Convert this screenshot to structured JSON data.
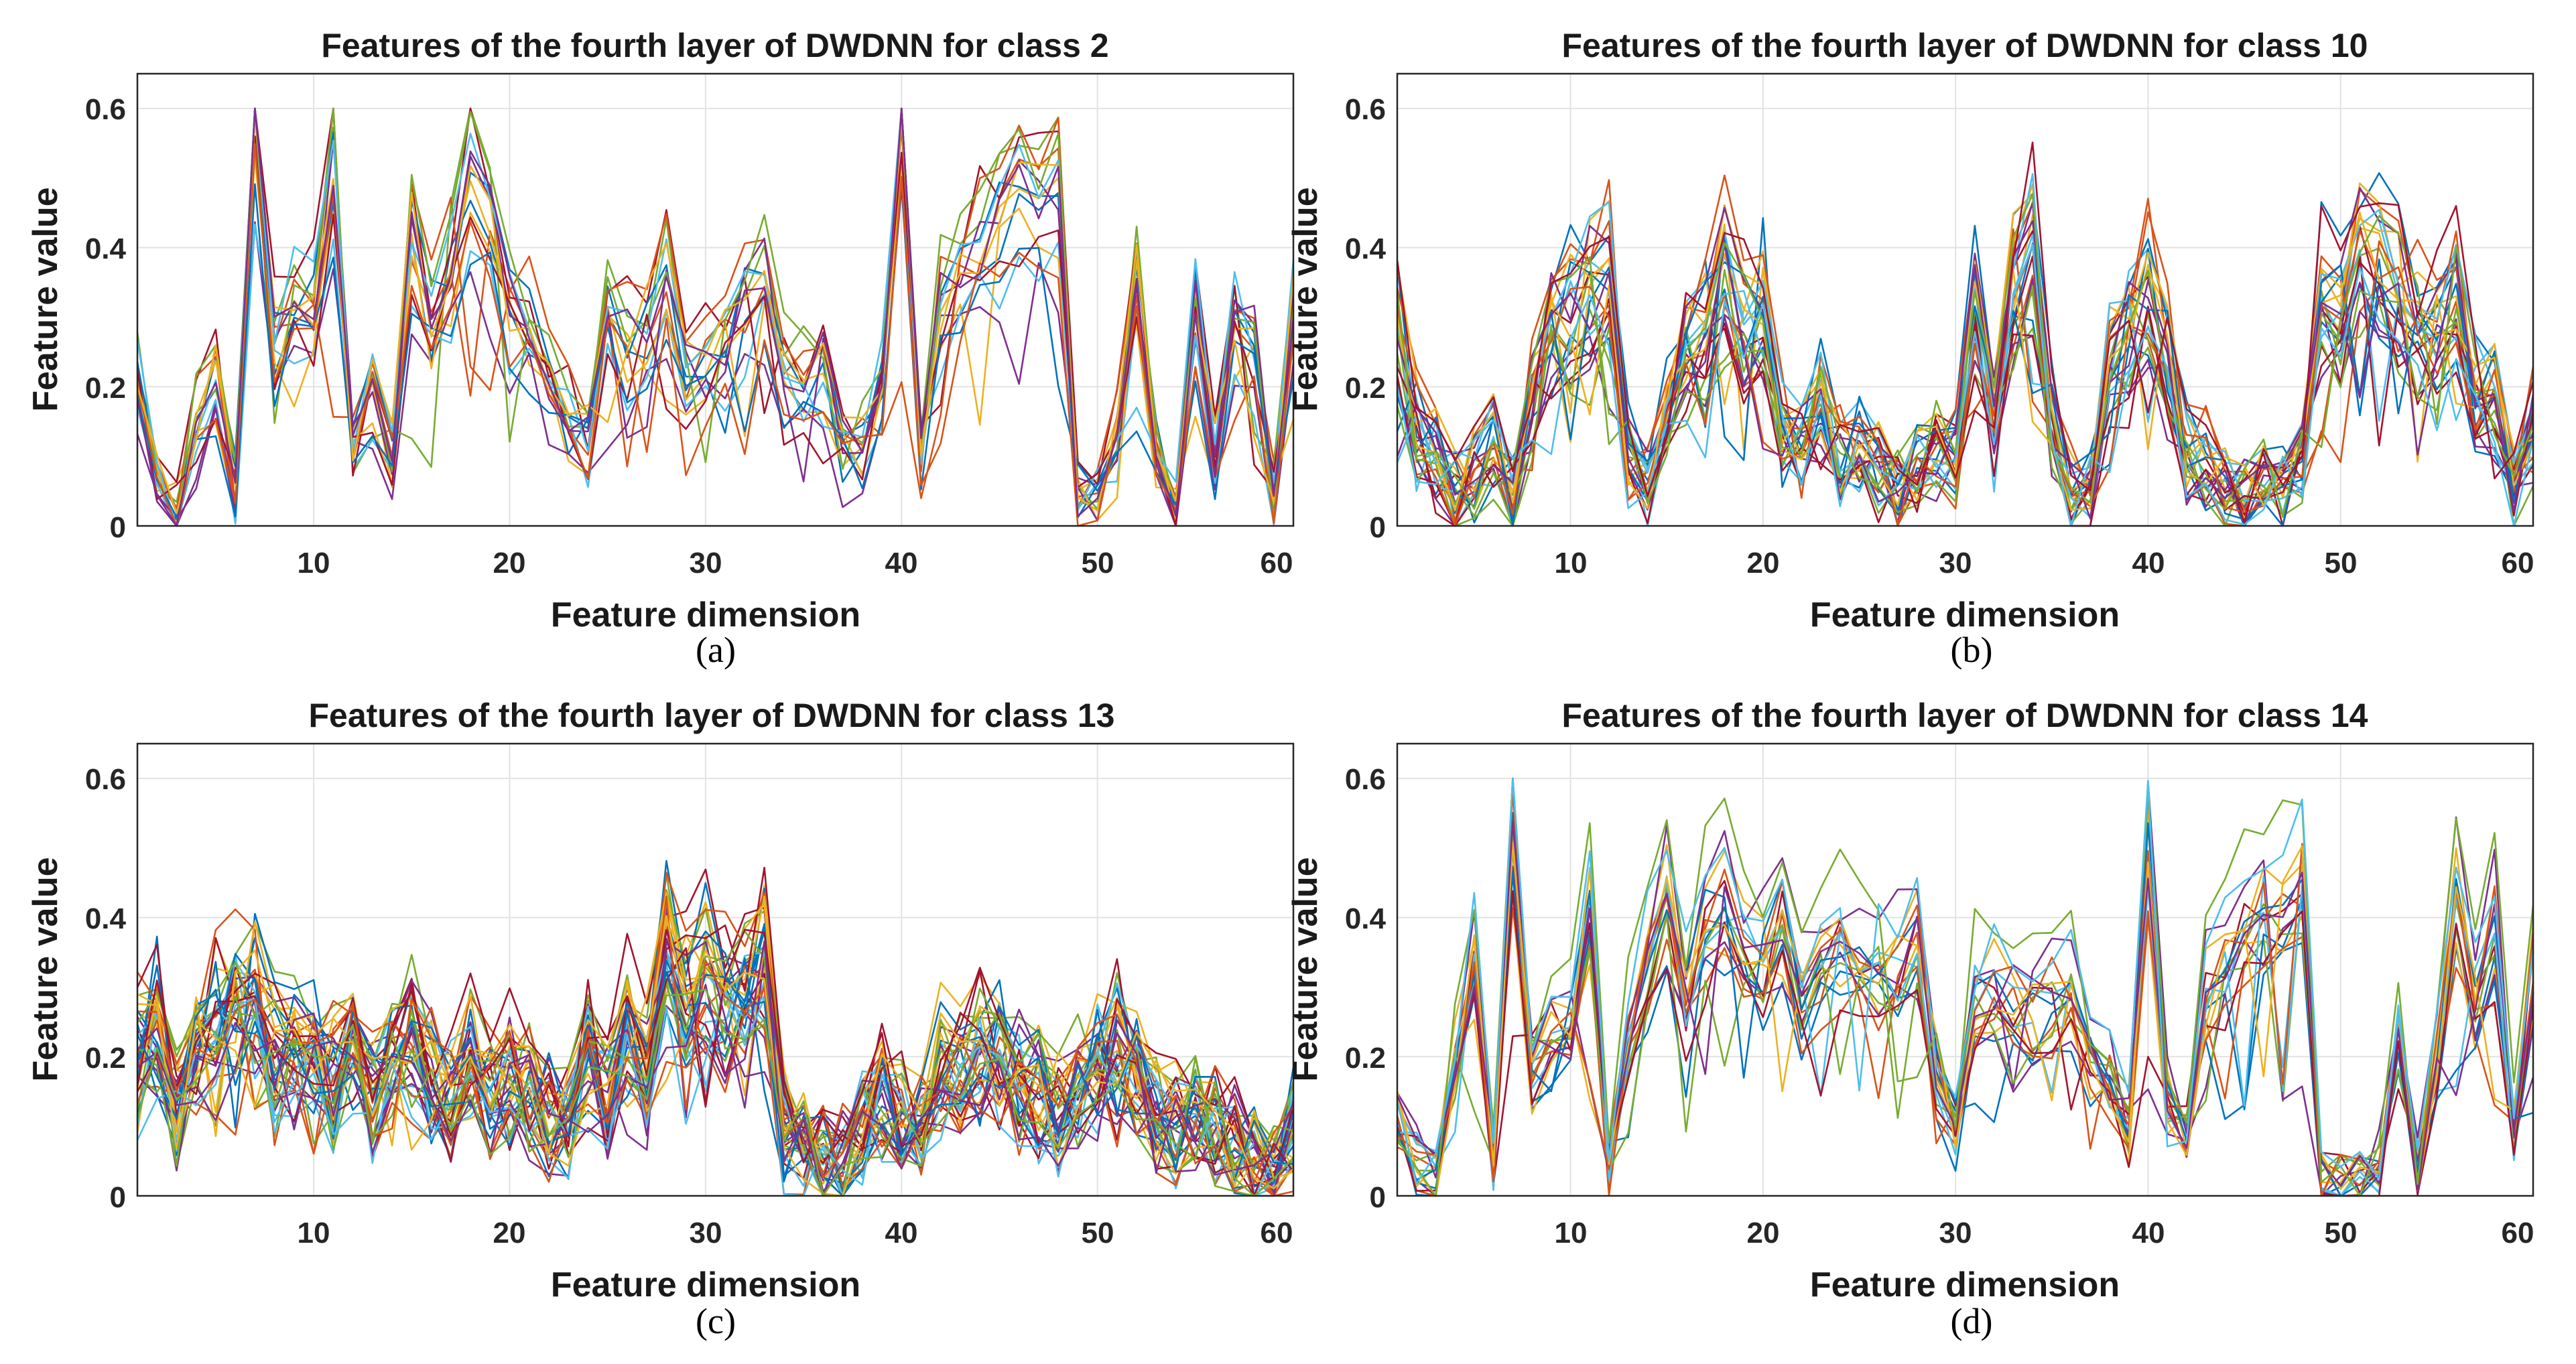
{
  "figure": {
    "colors": [
      "#0072BD",
      "#D95319",
      "#EDB120",
      "#7E2F8E",
      "#77AC30",
      "#4DBEEE",
      "#A2142F"
    ]
  },
  "chart_data": [
    {
      "type": "line",
      "caption": "(a)",
      "title": "Features of the fourth layer of DWDNN for class 2",
      "xlabel": "Feature dimension",
      "ylabel": "Feature value",
      "xlim": [
        1,
        60
      ],
      "ylim": [
        0,
        0.65
      ],
      "xticks": [
        "10",
        "20",
        "30",
        "40",
        "50",
        "60"
      ],
      "yticks": [
        "0",
        "0.2",
        "0.4",
        "0.6"
      ],
      "grid": true,
      "num_series": 18,
      "seed": 11,
      "noise": 0.05,
      "profile": [
        0.2,
        0.08,
        0.02,
        0.15,
        0.2,
        0.05,
        0.58,
        0.25,
        0.32,
        0.3,
        0.5,
        0.1,
        0.2,
        0.1,
        0.4,
        0.28,
        0.35,
        0.5,
        0.42,
        0.3,
        0.28,
        0.2,
        0.15,
        0.12,
        0.3,
        0.25,
        0.28,
        0.35,
        0.2,
        0.22,
        0.25,
        0.3,
        0.35,
        0.22,
        0.2,
        0.22,
        0.1,
        0.12,
        0.2,
        0.58,
        0.12,
        0.32,
        0.35,
        0.38,
        0.42,
        0.45,
        0.45,
        0.47,
        0.05,
        0.05,
        0.12,
        0.35,
        0.1,
        0.02,
        0.3,
        0.1,
        0.28,
        0.25,
        0.05,
        0.3
      ]
    },
    {
      "type": "line",
      "caption": "(b)",
      "title": "Features of the fourth layer of DWDNN for class 10",
      "xlabel": "Feature dimension",
      "ylabel": "Feature value",
      "xlim": [
        1,
        60
      ],
      "ylim": [
        0,
        0.65
      ],
      "xticks": [
        "10",
        "20",
        "30",
        "40",
        "50",
        "60"
      ],
      "yticks": [
        "0",
        "0.2",
        "0.4",
        "0.6"
      ],
      "grid": true,
      "num_series": 28,
      "seed": 23,
      "noise": 0.06,
      "profile": [
        0.3,
        0.15,
        0.1,
        0.05,
        0.08,
        0.12,
        0.05,
        0.2,
        0.3,
        0.32,
        0.35,
        0.38,
        0.1,
        0.05,
        0.15,
        0.25,
        0.28,
        0.38,
        0.3,
        0.32,
        0.15,
        0.12,
        0.18,
        0.1,
        0.12,
        0.08,
        0.05,
        0.1,
        0.12,
        0.1,
        0.35,
        0.15,
        0.35,
        0.42,
        0.15,
        0.05,
        0.05,
        0.25,
        0.3,
        0.35,
        0.25,
        0.1,
        0.1,
        0.05,
        0.05,
        0.08,
        0.05,
        0.1,
        0.35,
        0.3,
        0.42,
        0.38,
        0.35,
        0.3,
        0.3,
        0.35,
        0.2,
        0.2,
        0.05,
        0.15
      ]
    },
    {
      "type": "line",
      "caption": "(c)",
      "title": "Features of the fourth layer of DWDNN for class 13",
      "xlabel": "Feature dimension",
      "ylabel": "Feature value",
      "xlim": [
        1,
        60
      ],
      "ylim": [
        0,
        0.65
      ],
      "xticks": [
        "10",
        "20",
        "30",
        "40",
        "50",
        "60"
      ],
      "yticks": [
        "0",
        "0.2",
        "0.4",
        "0.6"
      ],
      "grid": true,
      "num_series": 40,
      "seed": 37,
      "noise": 0.08,
      "profile": [
        0.2,
        0.25,
        0.12,
        0.2,
        0.25,
        0.28,
        0.3,
        0.2,
        0.22,
        0.2,
        0.18,
        0.22,
        0.15,
        0.2,
        0.22,
        0.18,
        0.15,
        0.2,
        0.15,
        0.18,
        0.15,
        0.12,
        0.1,
        0.2,
        0.15,
        0.25,
        0.2,
        0.35,
        0.3,
        0.32,
        0.28,
        0.3,
        0.35,
        0.1,
        0.08,
        0.06,
        0.05,
        0.1,
        0.15,
        0.12,
        0.1,
        0.2,
        0.18,
        0.22,
        0.2,
        0.18,
        0.15,
        0.12,
        0.15,
        0.2,
        0.22,
        0.18,
        0.12,
        0.1,
        0.12,
        0.1,
        0.08,
        0.05,
        0.02,
        0.1
      ]
    },
    {
      "type": "line",
      "caption": "(d)",
      "title": "Features of the fourth layer of DWDNN for class 14",
      "xlabel": "Feature dimension",
      "ylabel": "Feature value",
      "xlim": [
        1,
        60
      ],
      "ylim": [
        0,
        0.65
      ],
      "xticks": [
        "10",
        "20",
        "30",
        "40",
        "50",
        "60"
      ],
      "yticks": [
        "0",
        "0.2",
        "0.4",
        "0.6"
      ],
      "grid": true,
      "num_series": 20,
      "seed": 53,
      "noise": 0.045,
      "profile": [
        0.12,
        0.05,
        0.03,
        0.2,
        0.35,
        0.05,
        0.55,
        0.2,
        0.25,
        0.25,
        0.45,
        0.05,
        0.25,
        0.35,
        0.45,
        0.3,
        0.4,
        0.45,
        0.38,
        0.35,
        0.42,
        0.3,
        0.35,
        0.38,
        0.35,
        0.35,
        0.35,
        0.38,
        0.2,
        0.1,
        0.3,
        0.32,
        0.3,
        0.28,
        0.3,
        0.32,
        0.2,
        0.18,
        0.1,
        0.5,
        0.15,
        0.1,
        0.3,
        0.35,
        0.4,
        0.45,
        0.45,
        0.48,
        0.02,
        0.02,
        0.02,
        0.05,
        0.25,
        0.05,
        0.2,
        0.45,
        0.3,
        0.4,
        0.1,
        0.35
      ]
    }
  ]
}
